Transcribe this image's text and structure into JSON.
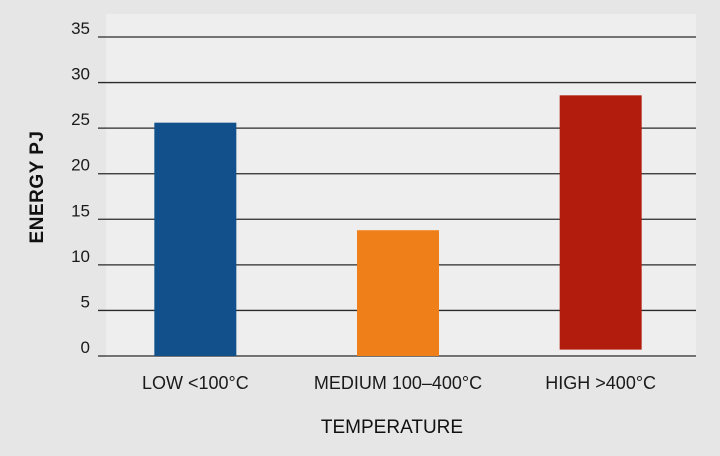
{
  "chart_data": {
    "type": "bar",
    "title": "",
    "xlabel": "TEMPERATURE",
    "ylabel": "ENERGY PJ",
    "ylim": [
      0,
      35
    ],
    "yticks": [
      0,
      5,
      10,
      15,
      20,
      25,
      30,
      35
    ],
    "grid": true,
    "categories": [
      "LOW <100°C",
      "MEDIUM 100–400°C",
      "HIGH >400°C"
    ],
    "values": [
      25.6,
      13.8,
      28.6
    ],
    "bar_bottoms": [
      0,
      0,
      0.7
    ],
    "colors": [
      "#11508a",
      "#ef8019",
      "#b21c0c"
    ],
    "plot_background": "#eeeeee",
    "gridline_color": "#2a2a2a"
  }
}
